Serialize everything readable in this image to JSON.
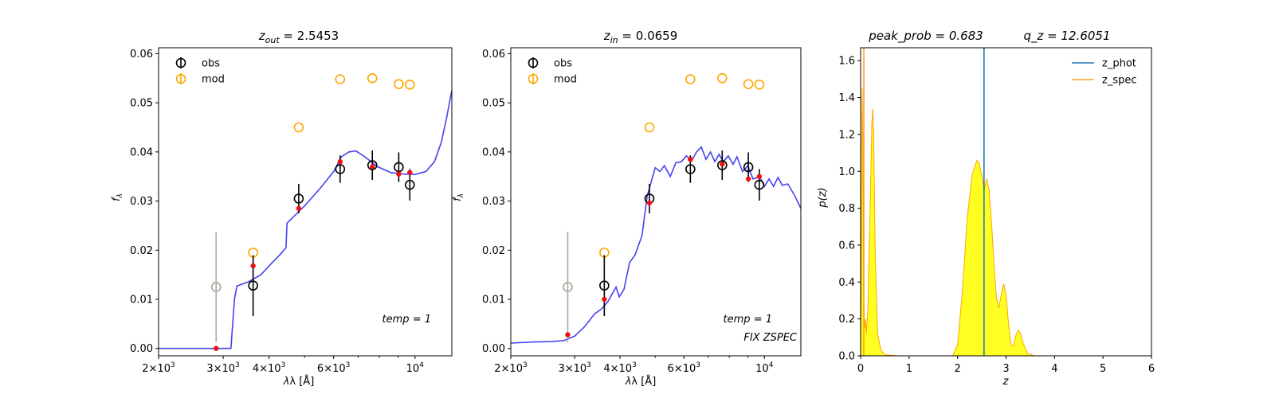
{
  "chart_data": [
    {
      "type": "scatter",
      "title_parts": [
        "z",
        "out",
        " = 2.5453"
      ],
      "xlabel": "λ [Å]",
      "ylabel": "f",
      "ylabel_sub": "λ",
      "x_scale": "log",
      "xlim": [
        2000,
        12600
      ],
      "ylim": [
        -0.0015,
        0.0612
      ],
      "x_ticks": [
        {
          "value": 2000,
          "base": "2×10",
          "exp": "3"
        },
        {
          "value": 3000,
          "base": "3×10",
          "exp": "3"
        },
        {
          "value": 4000,
          "base": "4×10",
          "exp": "3"
        },
        {
          "value": 6000,
          "base": "6×10",
          "exp": "3"
        },
        {
          "value": 10000,
          "base": "10",
          "exp": "4"
        }
      ],
      "y_ticks": [
        "0.00",
        "0.01",
        "0.02",
        "0.03",
        "0.04",
        "0.05",
        "0.06"
      ],
      "legend": [
        "obs",
        "mod"
      ],
      "legend_placement": "top-left",
      "annotations": [
        "temp = 1"
      ],
      "series": [
        {
          "name": "obs",
          "points": [
            {
              "x": 2870,
              "y": 0.0125,
              "err": 0.0112,
              "upper_limit": true
            },
            {
              "x": 3620,
              "y": 0.0128,
              "err": 0.0062
            },
            {
              "x": 4820,
              "y": 0.0305,
              "err": 0.003
            },
            {
              "x": 6250,
              "y": 0.0365,
              "err": 0.0028
            },
            {
              "x": 7650,
              "y": 0.0373,
              "err": 0.003
            },
            {
              "x": 9030,
              "y": 0.0369,
              "err": 0.003
            },
            {
              "x": 9680,
              "y": 0.0333,
              "err": 0.0032
            }
          ]
        },
        {
          "name": "mod",
          "points": [
            {
              "x": 2870,
              "y": 0.0125
            },
            {
              "x": 3620,
              "y": 0.0195
            },
            {
              "x": 4820,
              "y": 0.045
            },
            {
              "x": 6250,
              "y": 0.0548
            },
            {
              "x": 7650,
              "y": 0.055
            },
            {
              "x": 9030,
              "y": 0.0538
            },
            {
              "x": 9680,
              "y": 0.0537
            }
          ]
        },
        {
          "name": "model flux",
          "points": [
            {
              "x": 2870,
              "y": 0.0
            },
            {
              "x": 3620,
              "y": 0.0168
            },
            {
              "x": 4820,
              "y": 0.0285
            },
            {
              "x": 6250,
              "y": 0.038
            },
            {
              "x": 7650,
              "y": 0.037
            },
            {
              "x": 9030,
              "y": 0.0355
            },
            {
              "x": 9680,
              "y": 0.0358
            }
          ]
        },
        {
          "name": "template",
          "line": [
            [
              2000,
              0.0
            ],
            [
              3150,
              0.0
            ],
            [
              3220,
              0.01
            ],
            [
              3270,
              0.0127
            ],
            [
              3500,
              0.0135
            ],
            [
              3800,
              0.015
            ],
            [
              4050,
              0.0172
            ],
            [
              4300,
              0.0192
            ],
            [
              4450,
              0.0205
            ],
            [
              4480,
              0.0255
            ],
            [
              5000,
              0.029
            ],
            [
              5500,
              0.0325
            ],
            [
              6000,
              0.036
            ],
            [
              6300,
              0.039
            ],
            [
              6600,
              0.04
            ],
            [
              6900,
              0.0402
            ],
            [
              7300,
              0.039
            ],
            [
              7900,
              0.037
            ],
            [
              8600,
              0.0358
            ],
            [
              9300,
              0.0355
            ],
            [
              10000,
              0.0354
            ],
            [
              10700,
              0.036
            ],
            [
              11300,
              0.038
            ],
            [
              11800,
              0.042
            ],
            [
              12200,
              0.047
            ],
            [
              12600,
              0.0525
            ]
          ]
        }
      ]
    },
    {
      "type": "scatter",
      "title_parts": [
        "z",
        "in",
        " = 0.0659"
      ],
      "xlabel": "λ [Å]",
      "ylabel": "f",
      "ylabel_sub": "λ",
      "x_scale": "log",
      "xlim": [
        2000,
        12600
      ],
      "ylim": [
        -0.0015,
        0.0612
      ],
      "x_ticks": [
        {
          "value": 2000,
          "base": "2×10",
          "exp": "3"
        },
        {
          "value": 3000,
          "base": "3×10",
          "exp": "3"
        },
        {
          "value": 4000,
          "base": "4×10",
          "exp": "3"
        },
        {
          "value": 6000,
          "base": "6×10",
          "exp": "3"
        },
        {
          "value": 10000,
          "base": "10",
          "exp": "4"
        }
      ],
      "y_ticks": [
        "0.00",
        "0.01",
        "0.02",
        "0.03",
        "0.04",
        "0.05",
        "0.06"
      ],
      "legend": [
        "obs",
        "mod"
      ],
      "legend_placement": "top-left",
      "annotations": [
        "temp = 1",
        "FIX ZSPEC"
      ],
      "series": [
        {
          "name": "obs",
          "points": [
            {
              "x": 2870,
              "y": 0.0125,
              "err": 0.0112,
              "upper_limit": true
            },
            {
              "x": 3620,
              "y": 0.0128,
              "err": 0.0062
            },
            {
              "x": 4820,
              "y": 0.0305,
              "err": 0.003
            },
            {
              "x": 6250,
              "y": 0.0365,
              "err": 0.0028
            },
            {
              "x": 7650,
              "y": 0.0373,
              "err": 0.003
            },
            {
              "x": 9030,
              "y": 0.0369,
              "err": 0.003
            },
            {
              "x": 9680,
              "y": 0.0333,
              "err": 0.0032
            }
          ]
        },
        {
          "name": "mod",
          "points": [
            {
              "x": 2870,
              "y": 0.0125
            },
            {
              "x": 3620,
              "y": 0.0195
            },
            {
              "x": 4820,
              "y": 0.045
            },
            {
              "x": 6250,
              "y": 0.0548
            },
            {
              "x": 7650,
              "y": 0.055
            },
            {
              "x": 9030,
              "y": 0.0538
            },
            {
              "x": 9680,
              "y": 0.0537
            }
          ]
        },
        {
          "name": "model flux",
          "points": [
            {
              "x": 2870,
              "y": 0.0028
            },
            {
              "x": 3620,
              "y": 0.01
            },
            {
              "x": 4820,
              "y": 0.0296
            },
            {
              "x": 6250,
              "y": 0.0385
            },
            {
              "x": 7650,
              "y": 0.0375
            },
            {
              "x": 9030,
              "y": 0.0345
            },
            {
              "x": 9680,
              "y": 0.035
            }
          ]
        },
        {
          "name": "template",
          "line": [
            [
              2000,
              0.0011
            ],
            [
              2300,
              0.0013
            ],
            [
              2600,
              0.0014
            ],
            [
              2800,
              0.0016
            ],
            [
              3000,
              0.0025
            ],
            [
              3200,
              0.0045
            ],
            [
              3400,
              0.007
            ],
            [
              3550,
              0.008
            ],
            [
              3700,
              0.0095
            ],
            [
              3800,
              0.011
            ],
            [
              3900,
              0.0125
            ],
            [
              3980,
              0.0105
            ],
            [
              4100,
              0.012
            ],
            [
              4250,
              0.0175
            ],
            [
              4400,
              0.019
            ],
            [
              4600,
              0.023
            ],
            [
              4750,
              0.031
            ],
            [
              4900,
              0.0345
            ],
            [
              5000,
              0.0368
            ],
            [
              5150,
              0.036
            ],
            [
              5300,
              0.0372
            ],
            [
              5500,
              0.035
            ],
            [
              5700,
              0.0378
            ],
            [
              5900,
              0.038
            ],
            [
              6100,
              0.0392
            ],
            [
              6300,
              0.0382
            ],
            [
              6500,
              0.04
            ],
            [
              6700,
              0.041
            ],
            [
              6900,
              0.0385
            ],
            [
              7100,
              0.04
            ],
            [
              7300,
              0.038
            ],
            [
              7500,
              0.0395
            ],
            [
              7700,
              0.038
            ],
            [
              7950,
              0.0392
            ],
            [
              8200,
              0.0375
            ],
            [
              8400,
              0.039
            ],
            [
              8700,
              0.036
            ],
            [
              9000,
              0.0372
            ],
            [
              9300,
              0.0345
            ],
            [
              9700,
              0.035
            ],
            [
              10000,
              0.033
            ],
            [
              10300,
              0.0345
            ],
            [
              10600,
              0.033
            ],
            [
              10900,
              0.0348
            ],
            [
              11200,
              0.0332
            ],
            [
              11600,
              0.0335
            ],
            [
              12100,
              0.0312
            ],
            [
              12600,
              0.0285
            ]
          ]
        }
      ]
    },
    {
      "type": "area",
      "title_left": "peak_prob = 0.683",
      "title_right": "q_z = 12.6051",
      "xlabel": "z",
      "ylabel": "p(z)",
      "xlim": [
        0,
        6
      ],
      "ylim": [
        0,
        1.67
      ],
      "x_ticks": [
        "0",
        "1",
        "2",
        "3",
        "4",
        "5",
        "6"
      ],
      "y_ticks": [
        "0.0",
        "0.2",
        "0.4",
        "0.6",
        "0.8",
        "1.0",
        "1.2",
        "1.4",
        "1.6"
      ],
      "legend": [
        {
          "name": "z_phot",
          "color": "#1f77b4"
        },
        {
          "name": "z_spec",
          "color": "#ff9f1c"
        }
      ],
      "legend_placement": "top-right",
      "z_phot": 2.5453,
      "z_spec": 0.0659,
      "pdf": [
        [
          0.0,
          0.0
        ],
        [
          0.01,
          0.3
        ],
        [
          0.02,
          0.9
        ],
        [
          0.03,
          1.45
        ],
        [
          0.045,
          1.2
        ],
        [
          0.06,
          0.35
        ],
        [
          0.08,
          0.15
        ],
        [
          0.1,
          0.2
        ],
        [
          0.12,
          0.12
        ],
        [
          0.15,
          0.25
        ],
        [
          0.2,
          0.85
        ],
        [
          0.23,
          1.25
        ],
        [
          0.25,
          1.34
        ],
        [
          0.27,
          1.2
        ],
        [
          0.3,
          0.55
        ],
        [
          0.35,
          0.12
        ],
        [
          0.42,
          0.03
        ],
        [
          0.5,
          0.005
        ],
        [
          0.8,
          0.0
        ],
        [
          1.5,
          0.0
        ],
        [
          1.9,
          0.0
        ],
        [
          2.0,
          0.06
        ],
        [
          2.1,
          0.35
        ],
        [
          2.2,
          0.75
        ],
        [
          2.3,
          0.98
        ],
        [
          2.4,
          1.06
        ],
        [
          2.45,
          1.04
        ],
        [
          2.5,
          0.98
        ],
        [
          2.55,
          0.9
        ],
        [
          2.6,
          0.96
        ],
        [
          2.65,
          0.9
        ],
        [
          2.7,
          0.72
        ],
        [
          2.75,
          0.5
        ],
        [
          2.8,
          0.32
        ],
        [
          2.85,
          0.26
        ],
        [
          2.9,
          0.33
        ],
        [
          2.95,
          0.39
        ],
        [
          3.0,
          0.33
        ],
        [
          3.05,
          0.18
        ],
        [
          3.1,
          0.06
        ],
        [
          3.15,
          0.05
        ],
        [
          3.2,
          0.11
        ],
        [
          3.25,
          0.14
        ],
        [
          3.3,
          0.12
        ],
        [
          3.35,
          0.07
        ],
        [
          3.45,
          0.01
        ],
        [
          3.6,
          0.0
        ],
        [
          5.0,
          0.0
        ]
      ]
    }
  ]
}
